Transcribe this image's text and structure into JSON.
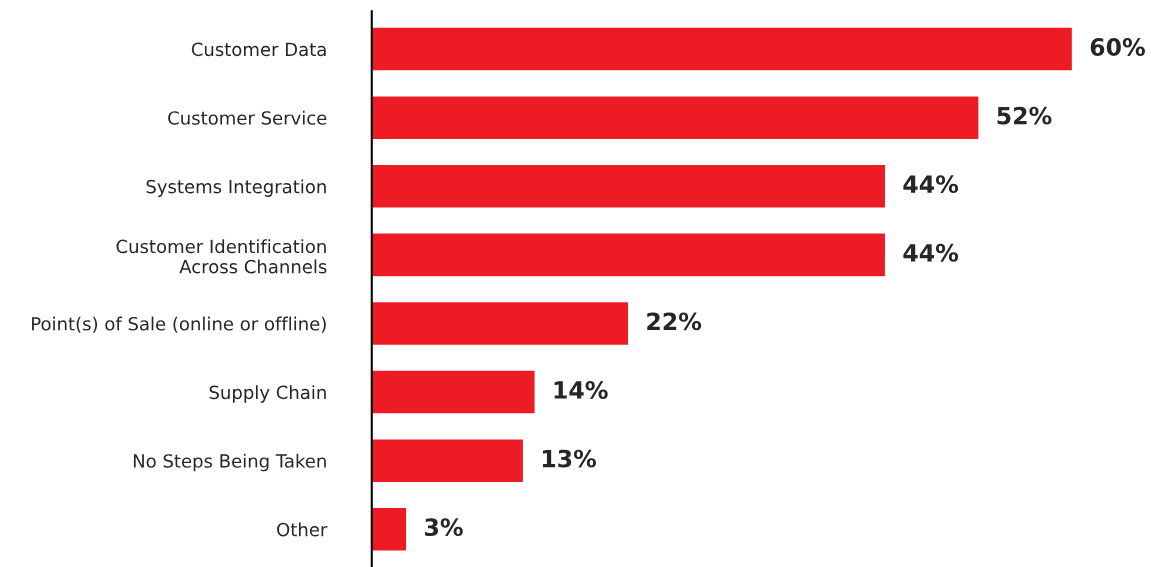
{
  "chart_data": {
    "type": "bar",
    "orientation": "horizontal",
    "categories": [
      "Customer Data",
      "Customer Service",
      "Systems Integration",
      "Customer Identification\nAcross Channels",
      "Point(s) of Sale (online or offline)",
      "Supply Chain",
      "No Steps Being Taken",
      "Other"
    ],
    "values": [
      60,
      52,
      44,
      44,
      22,
      14,
      13,
      3
    ],
    "value_labels": [
      "60%",
      "52%",
      "44%",
      "44%",
      "22%",
      "14%",
      "13%",
      "3%"
    ],
    "color": "#ed1c24",
    "grid": false,
    "legend": false
  }
}
